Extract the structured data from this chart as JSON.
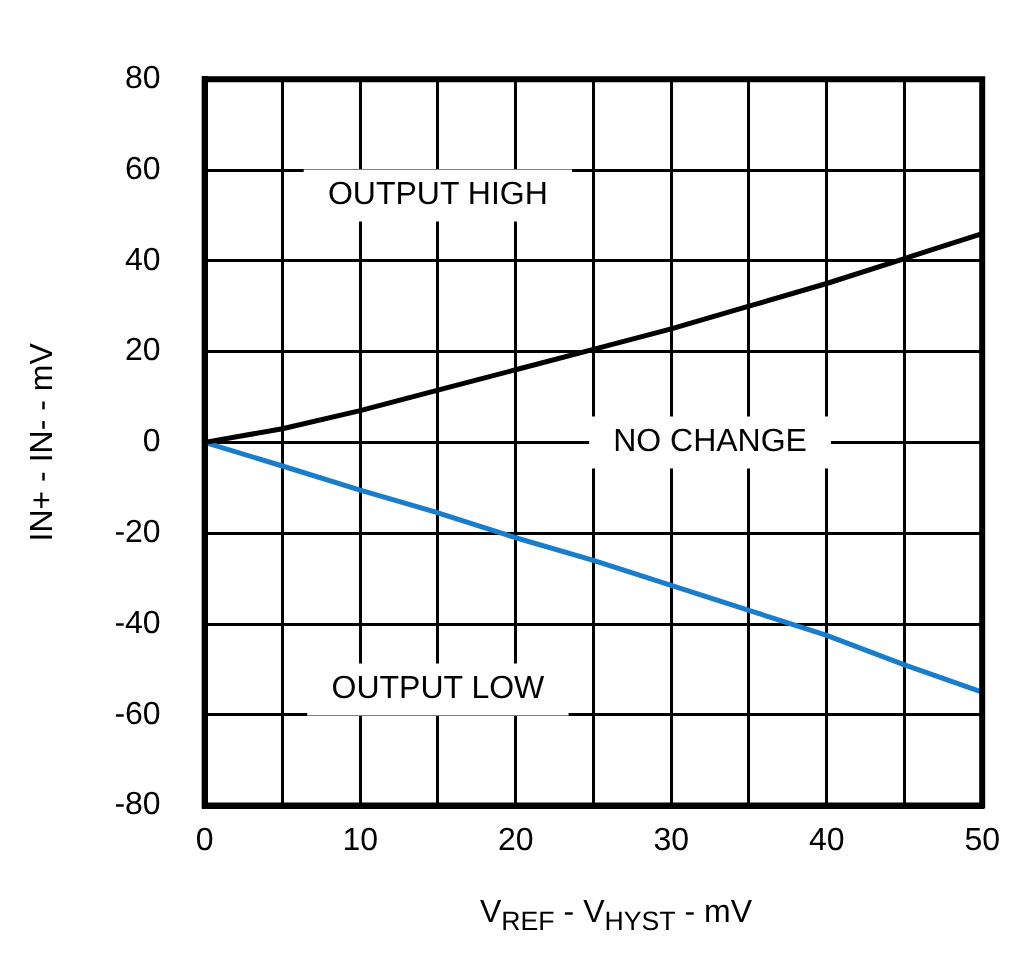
{
  "chart_data": {
    "type": "line",
    "xlabel": "V$_{REF}$ - V$_{HYST}$ - mV",
    "ylabel": "IN+ - IN- - mV",
    "x": [
      0,
      5,
      10,
      15,
      20,
      25,
      30,
      35,
      40,
      45,
      50
    ],
    "series": [
      {
        "color": "#000000",
        "values": [
          0,
          3,
          7,
          11.5,
          16,
          20.5,
          25,
          30,
          35,
          40.5,
          46
        ]
      },
      {
        "color": "#1a7dcc",
        "values": [
          0,
          -5.2,
          -10.5,
          -15.5,
          -21,
          -26,
          -31.5,
          -37,
          -42.5,
          -49,
          -55
        ]
      }
    ],
    "xlim": [
      0,
      50
    ],
    "xticks": [
      0,
      {
        "value": 5,
        "label": null
      },
      10,
      {
        "value": 15,
        "label": null
      },
      20,
      {
        "value": 25,
        "label": null
      },
      30,
      {
        "value": 35,
        "label": null
      },
      40,
      {
        "value": 45,
        "label": null
      },
      50
    ],
    "ylim": [
      -80,
      80
    ],
    "yticks": [
      -80,
      -60,
      -40,
      -20,
      0,
      20,
      40,
      60,
      80
    ],
    "grid": true,
    "legend": false,
    "marker": "none",
    "line_style": "solid",
    "annotations": [
      "OUTPUT HIGH",
      "NO CHANGE",
      "OUTPUT LOW"
    ]
  }
}
